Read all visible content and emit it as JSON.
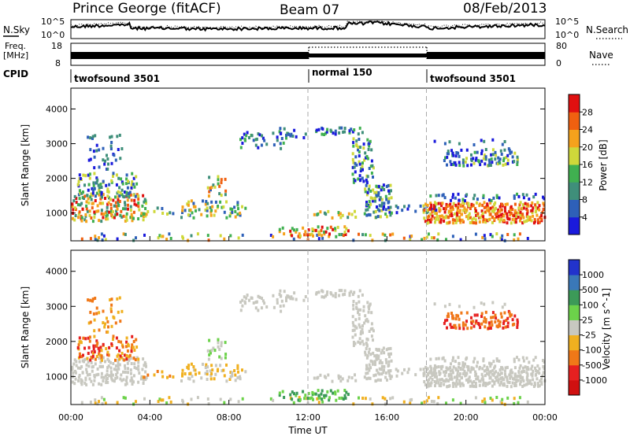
{
  "header": {
    "radar": "Prince George (fitACF)",
    "beam": "Beam 07",
    "date": "08/Feb/2013"
  },
  "noise_panel": {
    "left_label": "N.Sky",
    "right_label": "N.Search",
    "left_ticks": [
      "10^5",
      "10^0"
    ],
    "right_ticks": [
      "10^5",
      "10^0"
    ]
  },
  "freq_panel": {
    "left_label_1": "Freq.",
    "left_label_2": "[MHz]",
    "right_label": "Nave",
    "left_ticks": [
      "18",
      "8"
    ],
    "right_ticks": [
      "80",
      "0"
    ]
  },
  "cpid": {
    "label": "CPID",
    "segments": [
      {
        "name": "twofsound 3501",
        "start_h": 0
      },
      {
        "name": "normal 150",
        "start_h": 12
      },
      {
        "name": "twofsound 3501",
        "start_h": 18
      }
    ]
  },
  "chart_data": [
    {
      "type": "heatmap",
      "name": "power",
      "ylabel": "Slant Range [km]",
      "y_ticks": [
        "1000",
        "2000",
        "3000",
        "4000"
      ],
      "ylim": [
        200,
        4600
      ],
      "xlim_hours": [
        0,
        24
      ],
      "colorbar": {
        "label": "Power [dB]",
        "ticks": [
          "4",
          "8",
          "12",
          "16",
          "20",
          "24",
          "28"
        ],
        "colors": [
          "#1a1adc",
          "#2e60b8",
          "#3f8f7a",
          "#40b050",
          "#cfd83a",
          "#f5a21c",
          "#f06010",
          "#e01010"
        ]
      }
    },
    {
      "type": "heatmap",
      "name": "velocity",
      "ylabel": "Slant Range [km]",
      "y_ticks": [
        "1000",
        "2000",
        "3000",
        "4000"
      ],
      "ylim": [
        200,
        4600
      ],
      "xlim_hours": [
        0,
        24
      ],
      "xlabel": "Time UT",
      "x_ticks": [
        "00:00",
        "04:00",
        "08:00",
        "12:00",
        "16:00",
        "20:00",
        "00:00"
      ],
      "colorbar": {
        "label": "Velocity [m s^-1]",
        "ticks": [
          "1000",
          "500",
          "100",
          "25",
          "-25",
          "-100",
          "-500",
          "-1000"
        ],
        "colors": [
          "#2233cc",
          "#3a78b8",
          "#3c9a58",
          "#6cd24a",
          "#c8c8c0",
          "#f0b020",
          "#f07818",
          "#e62020",
          "#d01010"
        ]
      }
    }
  ]
}
